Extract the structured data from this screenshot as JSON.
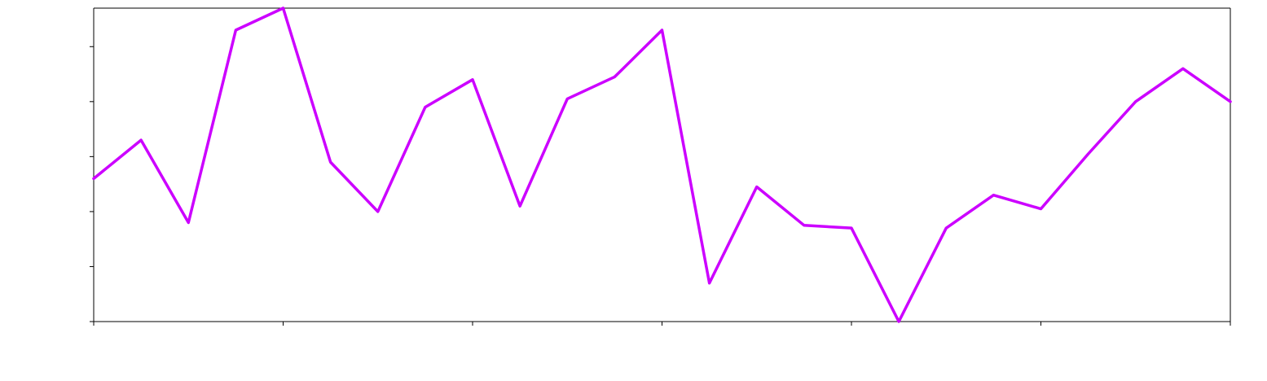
{
  "chart_data": {
    "type": "line",
    "title": "",
    "xlabel": "",
    "ylabel": "",
    "xlim": [
      0,
      24
    ],
    "ylim": [
      0,
      5.7
    ],
    "x_ticks": [
      0,
      4,
      8,
      12,
      16,
      20,
      24
    ],
    "y_ticks": [
      0,
      1,
      2,
      3,
      4,
      5
    ],
    "grid": false,
    "x": [
      0,
      1,
      2,
      3,
      4,
      5,
      6,
      7,
      8,
      9,
      10,
      11,
      12,
      13,
      14,
      15,
      16,
      17,
      18,
      19,
      20,
      21,
      22,
      23,
      24
    ],
    "series": [
      {
        "name": "",
        "color": "#cc00ff",
        "values": [
          2.6,
          3.3,
          1.8,
          5.3,
          5.7,
          2.9,
          2.0,
          3.9,
          4.4,
          2.1,
          4.05,
          4.45,
          5.3,
          0.7,
          2.45,
          1.75,
          1.7,
          0.0,
          1.7,
          2.3,
          2.05,
          3.05,
          4.0,
          4.6,
          4.0
        ]
      }
    ]
  }
}
